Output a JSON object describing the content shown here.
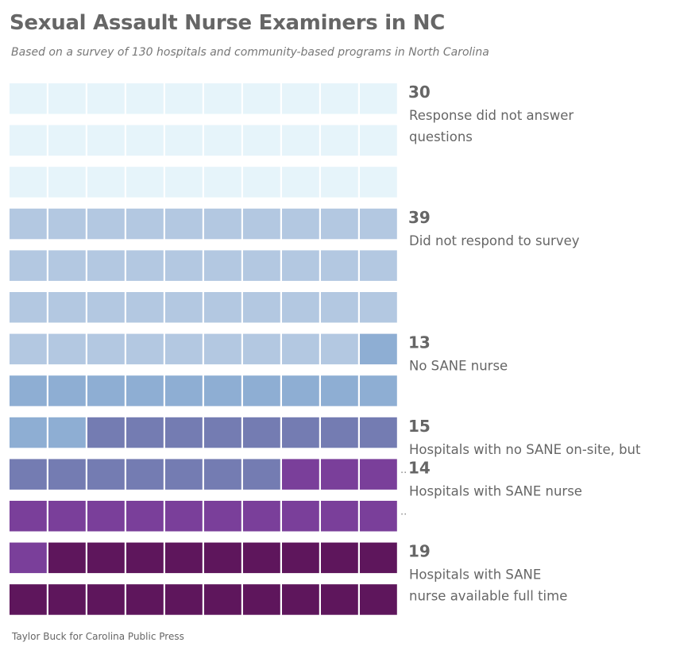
{
  "title": "Sexual Assault Nurse Examiners in NC",
  "subtitle": "Based on a survey of 130 hospitals and community-based programs in North Carolina",
  "source": "Taylor Buck for Carolina Public Press",
  "chart_data": {
    "type": "waffle",
    "units_per_row": 10,
    "total": 130,
    "series": [
      {
        "value": 30,
        "label_lines": [
          "Response did not answer",
          "questions"
        ],
        "color": "#e6f4fa",
        "truncated": false
      },
      {
        "value": 39,
        "label_lines": [
          "Did not respond to survey"
        ],
        "color": "#b3c8e1",
        "truncated": false
      },
      {
        "value": 13,
        "label_lines": [
          "No SANE nurse"
        ],
        "color": "#8eaed3",
        "truncated": false
      },
      {
        "value": 15,
        "label_lines": [
          "Hospitals with no SANE on-site, but"
        ],
        "color": "#747cb2",
        "truncated": true
      },
      {
        "value": 14,
        "label_lines": [
          "Hospitals with SANE nurse"
        ],
        "color": "#7a3f9a",
        "truncated": true
      },
      {
        "value": 19,
        "label_lines": [
          "Hospitals with SANE",
          "nurse available full time"
        ],
        "color": "#5e165c",
        "truncated": false
      }
    ]
  }
}
